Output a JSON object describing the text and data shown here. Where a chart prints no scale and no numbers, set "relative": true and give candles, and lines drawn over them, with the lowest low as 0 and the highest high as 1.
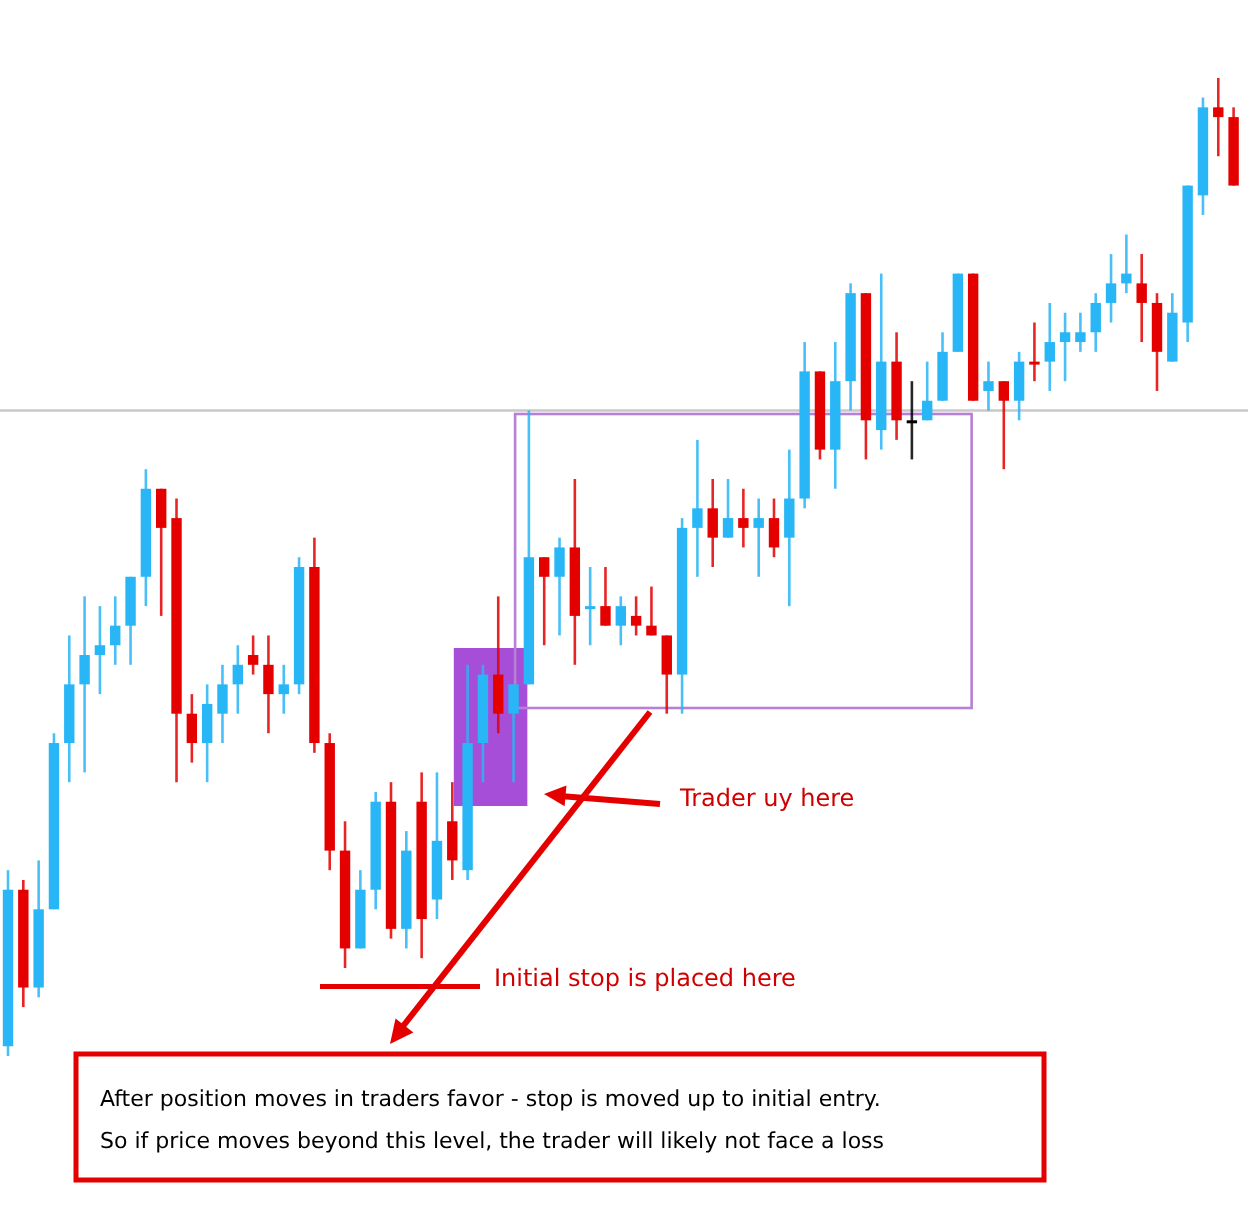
{
  "chart_data": {
    "type": "candlestick",
    "relative": true,
    "categories": [
      null,
      null,
      null,
      null,
      null,
      null,
      null,
      null,
      null,
      null,
      null,
      null,
      null,
      null,
      null,
      null,
      null,
      null,
      null,
      null,
      null,
      null,
      null,
      null,
      null,
      null,
      null,
      null,
      null,
      null,
      null,
      null,
      null,
      null,
      null,
      null,
      null,
      null,
      null,
      null,
      null,
      null,
      null,
      null,
      null,
      null,
      null,
      null,
      null,
      null,
      null,
      null,
      null,
      null,
      null,
      null,
      null,
      null,
      null,
      null,
      null,
      null,
      null,
      null,
      null,
      null,
      null,
      null,
      null,
      null,
      null,
      null,
      null,
      null,
      null,
      null,
      null,
      null,
      null,
      null,
      null
    ],
    "ohlc": [
      [
        0.01,
        0.19,
        0,
        0.17
      ],
      [
        0.17,
        0.18,
        0.05,
        0.07
      ],
      [
        0.07,
        0.2,
        0.06,
        0.15
      ],
      [
        0.15,
        0.33,
        0.15,
        0.32
      ],
      [
        0.32,
        0.43,
        0.28,
        0.38
      ],
      [
        0.38,
        0.47,
        0.29,
        0.41
      ],
      [
        0.41,
        0.46,
        0.37,
        0.42
      ],
      [
        0.42,
        0.47,
        0.4,
        0.44
      ],
      [
        0.44,
        0.49,
        0.4,
        0.49
      ],
      [
        0.49,
        0.6,
        0.46,
        0.58
      ],
      [
        0.58,
        0.58,
        0.45,
        0.54
      ],
      [
        0.55,
        0.57,
        0.28,
        0.35
      ],
      [
        0.35,
        0.37,
        0.3,
        0.32
      ],
      [
        0.32,
        0.38,
        0.28,
        0.36
      ],
      [
        0.35,
        0.4,
        0.32,
        0.38
      ],
      [
        0.38,
        0.42,
        0.35,
        0.4
      ],
      [
        0.41,
        0.43,
        0.39,
        0.4
      ],
      [
        0.4,
        0.43,
        0.33,
        0.37
      ],
      [
        0.37,
        0.4,
        0.35,
        0.38
      ],
      [
        0.38,
        0.51,
        0.37,
        0.5
      ],
      [
        0.5,
        0.53,
        0.31,
        0.32
      ],
      [
        0.32,
        0.33,
        0.19,
        0.21
      ],
      [
        0.21,
        0.24,
        0.09,
        0.11
      ],
      [
        0.11,
        0.19,
        0.11,
        0.17
      ],
      [
        0.17,
        0.27,
        0.15,
        0.26
      ],
      [
        0.26,
        0.28,
        0.12,
        0.13
      ],
      [
        0.13,
        0.23,
        0.11,
        0.21
      ],
      [
        0.26,
        0.29,
        0.1,
        0.14
      ],
      [
        0.16,
        0.29,
        0.14,
        0.22
      ],
      [
        0.24,
        0.28,
        0.18,
        0.2
      ],
      [
        0.19,
        0.4,
        0.18,
        0.32
      ],
      [
        0.32,
        0.4,
        0.28,
        0.39
      ],
      [
        0.39,
        0.47,
        0.33,
        0.35
      ],
      [
        0.35,
        0.38,
        0.28,
        0.38
      ],
      [
        0.38,
        0.66,
        0.38,
        0.51
      ],
      [
        0.51,
        0.51,
        0.42,
        0.49
      ],
      [
        0.49,
        0.53,
        0.43,
        0.52
      ],
      [
        0.52,
        0.59,
        0.4,
        0.45
      ],
      [
        0.46,
        0.5,
        0.42,
        0.46
      ],
      [
        0.46,
        0.5,
        0.44,
        0.44
      ],
      [
        0.44,
        0.47,
        0.42,
        0.46
      ],
      [
        0.45,
        0.47,
        0.43,
        0.44
      ],
      [
        0.44,
        0.48,
        0.43,
        0.43
      ],
      [
        0.43,
        0.43,
        0.35,
        0.39
      ],
      [
        0.39,
        0.55,
        0.35,
        0.54
      ],
      [
        0.54,
        0.63,
        0.49,
        0.56
      ],
      [
        0.56,
        0.59,
        0.5,
        0.53
      ],
      [
        0.53,
        0.59,
        0.53,
        0.55
      ],
      [
        0.55,
        0.58,
        0.52,
        0.54
      ],
      [
        0.54,
        0.57,
        0.49,
        0.55
      ],
      [
        0.55,
        0.57,
        0.51,
        0.52
      ],
      [
        0.53,
        0.62,
        0.46,
        0.57
      ],
      [
        0.57,
        0.73,
        0.56,
        0.7
      ],
      [
        0.7,
        0.7,
        0.61,
        0.62
      ],
      [
        0.62,
        0.73,
        0.58,
        0.69
      ],
      [
        0.69,
        0.79,
        0.66,
        0.78
      ],
      [
        0.78,
        0.78,
        0.61,
        0.65
      ],
      [
        0.64,
        0.8,
        0.62,
        0.71
      ],
      [
        0.71,
        0.74,
        0.63,
        0.65
      ],
      [
        0.65,
        0.69,
        0.61,
        0.65
      ],
      [
        0.65,
        0.71,
        0.65,
        0.67
      ],
      [
        0.67,
        0.74,
        0.67,
        0.72
      ],
      [
        0.72,
        0.8,
        0.72,
        0.8
      ],
      [
        0.8,
        0.8,
        0.67,
        0.67
      ],
      [
        0.68,
        0.71,
        0.66,
        0.69
      ],
      [
        0.69,
        0.69,
        0.6,
        0.67
      ],
      [
        0.67,
        0.72,
        0.65,
        0.71
      ],
      [
        0.71,
        0.75,
        0.69,
        0.71
      ],
      [
        0.71,
        0.77,
        0.68,
        0.73
      ],
      [
        0.73,
        0.76,
        0.69,
        0.74
      ],
      [
        0.73,
        0.76,
        0.72,
        0.74
      ],
      [
        0.74,
        0.78,
        0.72,
        0.77
      ],
      [
        0.77,
        0.82,
        0.75,
        0.79
      ],
      [
        0.79,
        0.84,
        0.78,
        0.8
      ],
      [
        0.79,
        0.82,
        0.73,
        0.77
      ],
      [
        0.77,
        0.78,
        0.68,
        0.72
      ],
      [
        0.71,
        0.78,
        0.71,
        0.76
      ],
      [
        0.75,
        0.89,
        0.73,
        0.89
      ],
      [
        0.88,
        0.98,
        0.86,
        0.97
      ],
      [
        0.97,
        1,
        0.92,
        0.96
      ],
      [
        0.96,
        0.97,
        0.89,
        0.89
      ]
    ],
    "colors": [
      "#29b6f6",
      "#e50000",
      "#29b6f6",
      "#29b6f6",
      "#29b6f6",
      "#29b6f6",
      "#29b6f6",
      "#29b6f6",
      "#29b6f6",
      "#29b6f6",
      "#e50000",
      "#e50000",
      "#e50000",
      "#29b6f6",
      "#29b6f6",
      "#29b6f6",
      "#e50000",
      "#e50000",
      "#29b6f6",
      "#29b6f6",
      "#e50000",
      "#e50000",
      "#e50000",
      "#29b6f6",
      "#29b6f6",
      "#e50000",
      "#29b6f6",
      "#e50000",
      "#29b6f6",
      "#e50000",
      "#29b6f6",
      "#29b6f6",
      "#e50000",
      "#29b6f6",
      "#29b6f6",
      "#e50000",
      "#29b6f6",
      "#e50000",
      "#29b6f6",
      "#e50000",
      "#29b6f6",
      "#e50000",
      "#e50000",
      "#e50000",
      "#29b6f6",
      "#29b6f6",
      "#e50000",
      "#29b6f6",
      "#e50000",
      "#29b6f6",
      "#e50000",
      "#29b6f6",
      "#29b6f6",
      "#e50000",
      "#29b6f6",
      "#29b6f6",
      "#e50000",
      "#29b6f6",
      "#e50000",
      "#000000",
      "#29b6f6",
      "#29b6f6",
      "#29b6f6",
      "#e50000",
      "#29b6f6",
      "#e50000",
      "#29b6f6",
      "#e50000",
      "#29b6f6",
      "#29b6f6",
      "#29b6f6",
      "#29b6f6",
      "#29b6f6",
      "#29b6f6",
      "#e50000",
      "#e50000",
      "#29b6f6",
      "#29b6f6",
      "#29b6f6",
      "#e50000",
      "#e50000"
    ],
    "ref_lines": [
      {
        "axis": "y",
        "value": 0.66,
        "color": "#c8c8c8"
      }
    ],
    "annotations": [
      "Trader uy here",
      "Initial stop is placed here",
      "After position moves in traders favor - stop is moved up to initial entry.",
      "So if price moves beyond this level, the trader will likely not face a loss"
    ]
  }
}
